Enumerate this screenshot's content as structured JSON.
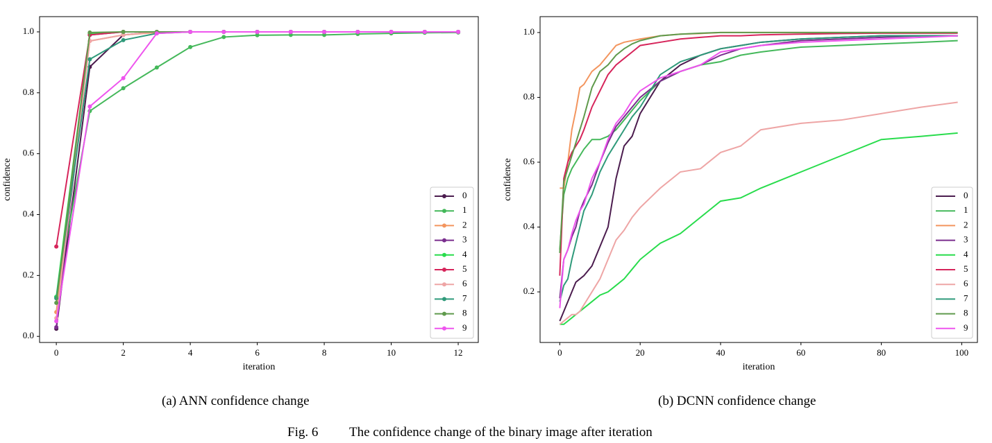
{
  "chart_data": [
    {
      "type": "line",
      "markers": true,
      "xlabel": "iteration",
      "ylabel": "confidence",
      "legend": "lower right",
      "x": [
        0,
        1,
        2,
        3,
        4,
        5,
        6,
        7,
        8,
        9,
        10,
        11,
        12
      ],
      "xlim": [
        -0.5,
        12.6
      ],
      "ylim": [
        -0.02,
        1.05
      ],
      "xticks": [
        0,
        2,
        4,
        6,
        8,
        10,
        12
      ],
      "yticks": [
        {
          "value": 0,
          "label": "0.0"
        },
        0.2,
        0.4,
        0.6,
        0.8,
        {
          "value": 1,
          "label": "1.0"
        }
      ],
      "series": [
        {
          "name": "0",
          "color": "#4b1c4e",
          "values": [
            0.025,
            0.885,
            0.99,
            1,
            1,
            1,
            1,
            1,
            1,
            1,
            1,
            1,
            1
          ]
        },
        {
          "name": "1",
          "color": "#44b85a",
          "values": [
            0.13,
            0.74,
            0.815,
            0.883,
            0.95,
            0.983,
            0.989,
            0.99,
            0.99,
            0.993,
            0.995,
            0.997,
            0.998
          ]
        },
        {
          "name": "2",
          "color": "#f3955e",
          "values": [
            0.08,
            0.97,
            0.99,
            0.998,
            1,
            1,
            1,
            1,
            1,
            1,
            1,
            1,
            1
          ]
        },
        {
          "name": "3",
          "color": "#7a2e8e",
          "values": [
            0.03,
            0.99,
            1,
            1,
            1,
            1,
            1,
            1,
            1,
            1,
            1,
            1,
            1
          ]
        },
        {
          "name": "4",
          "color": "#28dc4c",
          "values": [
            0.13,
            0.995,
            1,
            1,
            1,
            1,
            1,
            1,
            1,
            1,
            1,
            1,
            1
          ]
        },
        {
          "name": "5",
          "color": "#d6245a",
          "values": [
            0.295,
            0.99,
            1,
            1,
            1,
            1,
            1,
            1,
            1,
            1,
            1,
            1,
            1
          ]
        },
        {
          "name": "6",
          "color": "#eea5a5",
          "values": [
            0.06,
            0.97,
            0.99,
            1,
            1,
            1,
            1,
            1,
            1,
            1,
            1,
            1,
            1
          ]
        },
        {
          "name": "7",
          "color": "#2f9a7a",
          "values": [
            0.125,
            0.91,
            0.973,
            0.995,
            1,
            1,
            1,
            1,
            1,
            1,
            1,
            1,
            1
          ]
        },
        {
          "name": "8",
          "color": "#5f9a4c",
          "values": [
            0.11,
            0.998,
            1,
            1,
            1,
            1,
            1,
            1,
            1,
            1,
            1,
            1,
            1
          ]
        },
        {
          "name": "9",
          "color": "#ee55ee",
          "values": [
            0.05,
            0.755,
            0.848,
            0.995,
            1,
            1,
            1,
            1,
            1,
            1,
            1,
            1,
            1
          ]
        }
      ]
    },
    {
      "type": "line",
      "markers": false,
      "xlabel": "iteration",
      "ylabel": "confidence",
      "legend": "lower right",
      "x": [
        0,
        1,
        2,
        3,
        4,
        5,
        6,
        8,
        10,
        12,
        14,
        16,
        18,
        20,
        25,
        30,
        35,
        40,
        45,
        50,
        60,
        70,
        80,
        90,
        99
      ],
      "xlim": [
        -4.9,
        103.9
      ],
      "ylim": [
        0.044,
        1.049
      ],
      "xticks": [
        0,
        20,
        40,
        60,
        80,
        100
      ],
      "yticks": [
        0.2,
        0.4,
        0.6,
        0.8,
        {
          "value": 1,
          "label": "1.0"
        }
      ],
      "series": [
        {
          "name": "0",
          "color": "#4b1c4e",
          "values": [
            0.11,
            0.14,
            0.17,
            0.2,
            0.23,
            0.24,
            0.25,
            0.28,
            0.34,
            0.4,
            0.55,
            0.65,
            0.68,
            0.75,
            0.85,
            0.9,
            0.93,
            0.95,
            0.96,
            0.97,
            0.98,
            0.985,
            0.99,
            0.99,
            0.99
          ]
        },
        {
          "name": "1",
          "color": "#44b85a",
          "values": [
            0.33,
            0.5,
            0.55,
            0.58,
            0.6,
            0.62,
            0.64,
            0.67,
            0.67,
            0.68,
            0.7,
            0.73,
            0.76,
            0.79,
            0.85,
            0.88,
            0.9,
            0.91,
            0.93,
            0.94,
            0.955,
            0.96,
            0.965,
            0.97,
            0.975
          ]
        },
        {
          "name": "2",
          "color": "#f3955e",
          "values": [
            0.52,
            0.52,
            0.6,
            0.7,
            0.76,
            0.83,
            0.84,
            0.88,
            0.9,
            0.93,
            0.96,
            0.97,
            0.975,
            0.98,
            0.99,
            0.995,
            0.997,
            1,
            1,
            1,
            1,
            1,
            1,
            1,
            1
          ]
        },
        {
          "name": "3",
          "color": "#7a2e8e",
          "values": [
            0.18,
            0.3,
            0.33,
            0.37,
            0.4,
            0.45,
            0.48,
            0.53,
            0.6,
            0.66,
            0.71,
            0.74,
            0.77,
            0.8,
            0.85,
            0.88,
            0.9,
            0.93,
            0.95,
            0.96,
            0.975,
            0.98,
            0.985,
            0.99,
            0.99
          ]
        },
        {
          "name": "4",
          "color": "#28dc4c",
          "values": [
            0.1,
            0.1,
            0.11,
            0.12,
            0.13,
            0.14,
            0.15,
            0.17,
            0.19,
            0.2,
            0.22,
            0.24,
            0.27,
            0.3,
            0.35,
            0.38,
            0.43,
            0.48,
            0.49,
            0.52,
            0.57,
            0.62,
            0.67,
            0.68,
            0.69
          ]
        },
        {
          "name": "5",
          "color": "#d6245a",
          "values": [
            0.25,
            0.55,
            0.6,
            0.63,
            0.65,
            0.67,
            0.7,
            0.77,
            0.82,
            0.87,
            0.9,
            0.92,
            0.94,
            0.96,
            0.97,
            0.98,
            0.985,
            0.99,
            0.99,
            0.993,
            0.995,
            0.997,
            0.998,
            0.998,
            0.998
          ]
        },
        {
          "name": "6",
          "color": "#eea5a5",
          "values": [
            0.1,
            0.11,
            0.12,
            0.13,
            0.13,
            0.14,
            0.16,
            0.2,
            0.24,
            0.3,
            0.36,
            0.39,
            0.43,
            0.46,
            0.52,
            0.57,
            0.58,
            0.63,
            0.65,
            0.7,
            0.72,
            0.73,
            0.75,
            0.77,
            0.785
          ]
        },
        {
          "name": "7",
          "color": "#2f9a7a",
          "values": [
            0.17,
            0.22,
            0.24,
            0.3,
            0.35,
            0.4,
            0.45,
            0.5,
            0.57,
            0.62,
            0.66,
            0.7,
            0.74,
            0.77,
            0.87,
            0.91,
            0.93,
            0.95,
            0.96,
            0.97,
            0.98,
            0.985,
            0.99,
            0.99,
            0.99
          ]
        },
        {
          "name": "8",
          "color": "#5f9a4c",
          "values": [
            0.32,
            0.54,
            0.58,
            0.62,
            0.66,
            0.7,
            0.74,
            0.83,
            0.88,
            0.9,
            0.93,
            0.95,
            0.965,
            0.975,
            0.99,
            0.995,
            0.998,
            1,
            1,
            1,
            1,
            1,
            1,
            1,
            1
          ]
        },
        {
          "name": "9",
          "color": "#ee55ee",
          "values": [
            0.15,
            0.3,
            0.33,
            0.38,
            0.42,
            0.45,
            0.47,
            0.55,
            0.6,
            0.67,
            0.72,
            0.75,
            0.79,
            0.82,
            0.86,
            0.88,
            0.9,
            0.94,
            0.95,
            0.96,
            0.97,
            0.975,
            0.98,
            0.985,
            0.99
          ]
        }
      ]
    }
  ],
  "subcaptions": [
    "(a) ANN confidence change",
    "(b) DCNN confidence change"
  ],
  "caption_label": "Fig. 6",
  "caption_text": "The confidence change of the binary image after iteration"
}
